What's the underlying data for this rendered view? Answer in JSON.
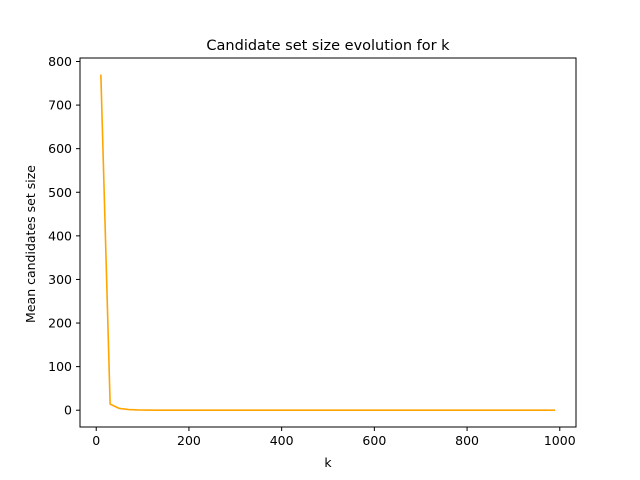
{
  "chart_data": {
    "type": "line",
    "title": "Candidate set size evolution for k",
    "xlabel": "k",
    "ylabel": "Mean candidates set size",
    "xlim": [
      -35,
      1035
    ],
    "ylim": [
      -38.5,
      808
    ],
    "xticks": [
      0,
      200,
      400,
      600,
      800,
      1000
    ],
    "yticks": [
      0,
      100,
      200,
      300,
      400,
      500,
      600,
      700,
      800
    ],
    "grid": false,
    "legend": false,
    "series": [
      {
        "color": "#ffa500",
        "x": [
          10,
          30,
          50,
          70,
          90,
          110,
          130,
          150,
          200,
          300,
          400,
          500,
          600,
          700,
          800,
          900,
          990
        ],
        "y": [
          770,
          14,
          4,
          1.5,
          0.6,
          0.3,
          0.1,
          0.05,
          0,
          0,
          0,
          0,
          0,
          0,
          0,
          0,
          0
        ]
      }
    ]
  }
}
